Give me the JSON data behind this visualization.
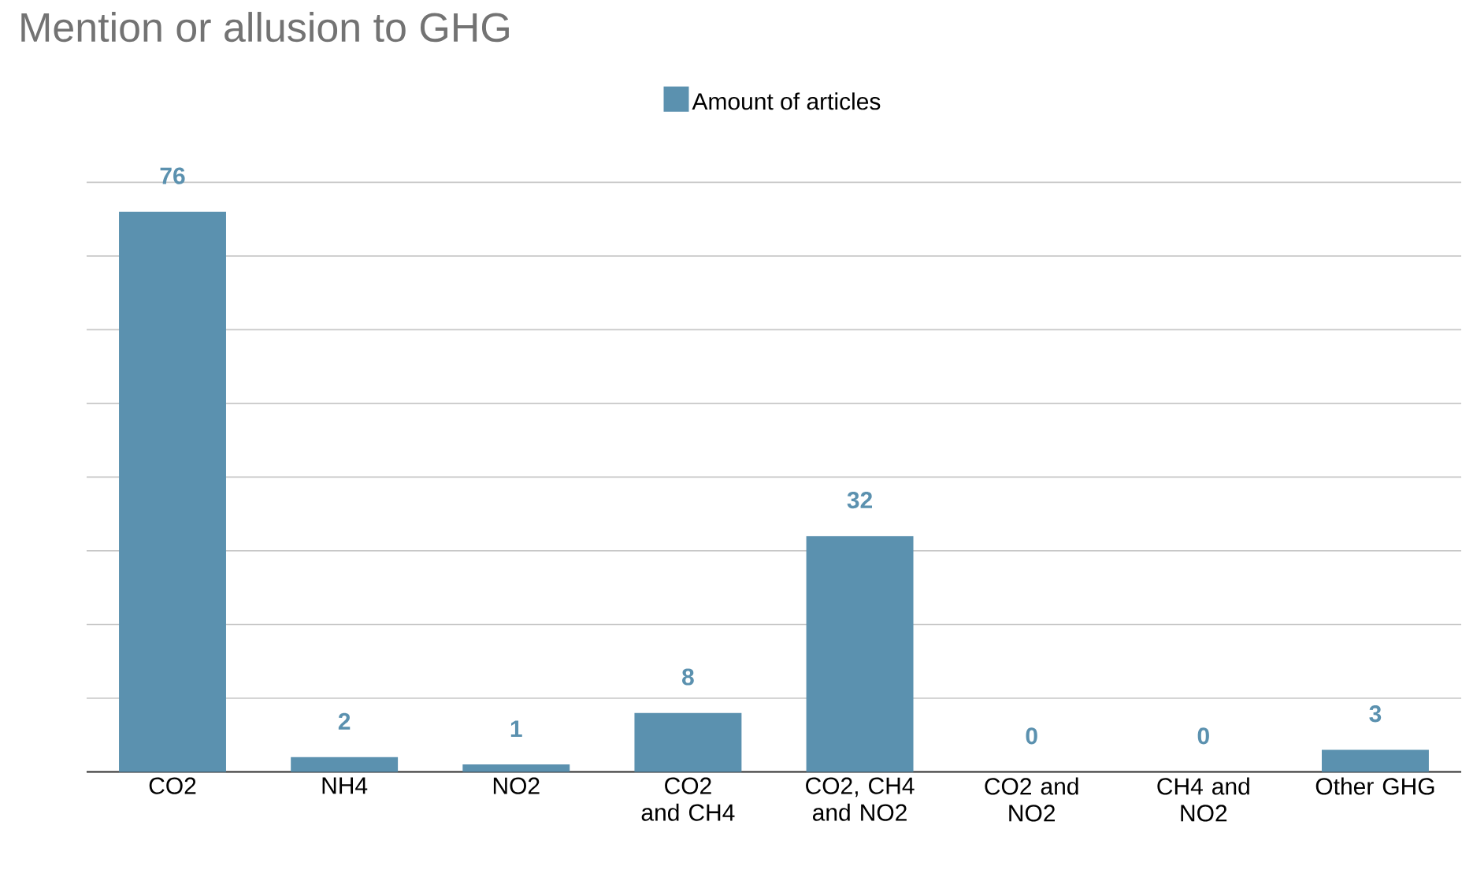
{
  "chart_data": {
    "type": "bar",
    "title": "Mention or allusion to GHG",
    "categories": [
      "CO2",
      "NH4",
      "NO2",
      "CO2 and CH4",
      "CO2, CH4 and NO2",
      "CO2 and NO2",
      "CH4 and NO2",
      "Other GHG"
    ],
    "series": [
      {
        "name": "Amount of articles",
        "color": "#5b91af",
        "values": [
          76,
          2,
          1,
          8,
          32,
          0,
          0,
          3
        ]
      }
    ],
    "tick_labels": "x",
    "grid": "y",
    "legend": "top",
    "data_labels": true
  }
}
